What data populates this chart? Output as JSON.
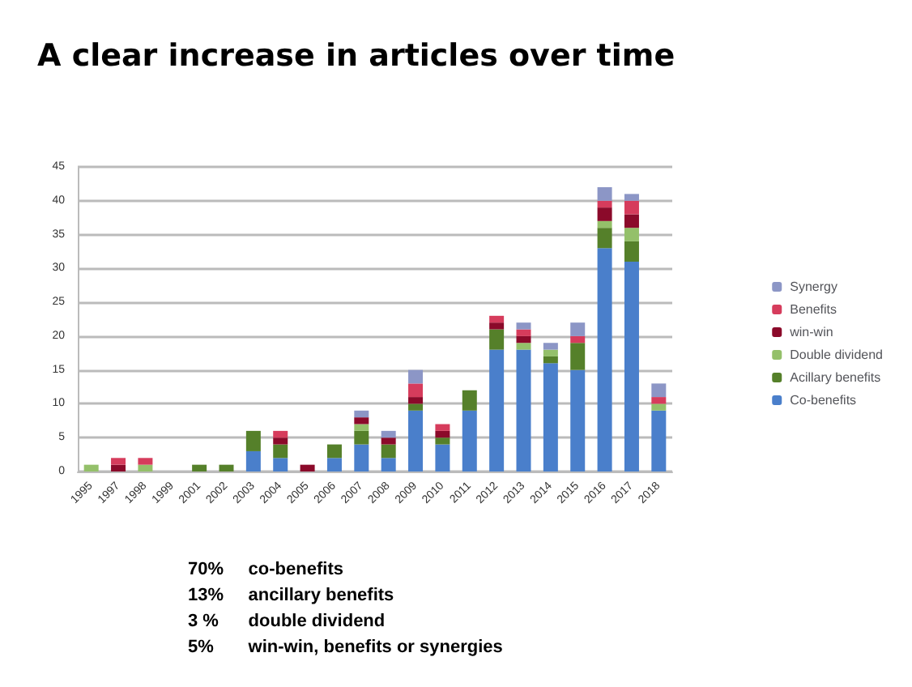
{
  "chart_data": {
    "type": "bar",
    "title": "A clear increase in articles over time",
    "stacked": true,
    "categories": [
      "1995",
      "1997",
      "1998",
      "1999",
      "2001",
      "2002",
      "2003",
      "2004",
      "2005",
      "2006",
      "2007",
      "2008",
      "2009",
      "2010",
      "2011",
      "2012",
      "2013",
      "2014",
      "2015",
      "2016",
      "2017",
      "2018"
    ],
    "series": [
      {
        "name": "Co-benefits",
        "color": "#4a7fcb",
        "values": [
          0,
          0,
          0,
          0,
          0,
          0,
          3,
          2,
          0,
          2,
          4,
          2,
          9,
          4,
          9,
          18,
          18,
          16,
          15,
          33,
          31,
          9
        ]
      },
      {
        "name": "Acillary benefits",
        "color": "#55802a",
        "values": [
          0,
          0,
          0,
          0,
          1,
          1,
          3,
          2,
          0,
          2,
          2,
          2,
          1,
          1,
          3,
          3,
          0,
          1,
          4,
          3,
          3,
          0
        ]
      },
      {
        "name": "Double dividend",
        "color": "#94c06a",
        "values": [
          1,
          0,
          1,
          0,
          0,
          0,
          0,
          0,
          0,
          0,
          1,
          0,
          0,
          0,
          0,
          0,
          1,
          1,
          0,
          1,
          2,
          1
        ]
      },
      {
        "name": "win-win",
        "color": "#8b0a2a",
        "values": [
          0,
          1,
          0,
          0,
          0,
          0,
          0,
          1,
          1,
          0,
          1,
          1,
          1,
          1,
          0,
          1,
          1,
          0,
          0,
          2,
          2,
          0
        ]
      },
      {
        "name": "Benefits",
        "color": "#d63c5c",
        "values": [
          0,
          1,
          1,
          0,
          0,
          0,
          0,
          1,
          0,
          0,
          0,
          0,
          2,
          1,
          0,
          1,
          1,
          0,
          1,
          1,
          2,
          1
        ]
      },
      {
        "name": "Synergy",
        "color": "#8c96c6",
        "values": [
          0,
          0,
          0,
          0,
          0,
          0,
          0,
          0,
          0,
          0,
          1,
          1,
          2,
          0,
          0,
          0,
          1,
          1,
          2,
          2,
          1,
          2
        ]
      }
    ],
    "ylim": [
      0,
      45
    ],
    "yticks": [
      0,
      5,
      10,
      15,
      20,
      25,
      30,
      35,
      40,
      45
    ],
    "grid": "y",
    "legend": "right",
    "annotations": [
      "70%     co-benefits",
      "13%     ancillary benefits",
      "3 %      double dividend",
      "5%       win-win, benefits or synergies"
    ]
  }
}
